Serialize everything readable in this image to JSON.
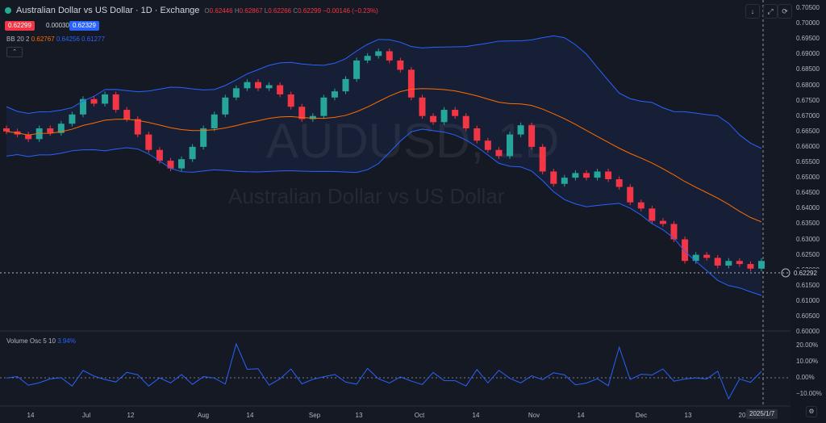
{
  "header": {
    "title": "Australian Dollar vs US Dollar · 1D · Exchange",
    "o_label": "O",
    "o_value": "0.62446",
    "h_label": "H",
    "h_value": "0.62867",
    "l_label": "L",
    "l_value": "0.62266",
    "c_label": "C",
    "c_value": "0.62299",
    "change": "−0.00146 (−0.23%)"
  },
  "trade": {
    "sell": "0.62299",
    "spread": "0.00030",
    "buy": "0.62329"
  },
  "bb": {
    "label": "BB",
    "params": "20 2",
    "basis": "0.62767",
    "upper": "0.64256",
    "lower": "0.61277"
  },
  "volosc": {
    "label": "Volume Osc",
    "params": "5 10",
    "value": "3.94%"
  },
  "watermark": {
    "symbol": "AUDUSD, 1D",
    "name": "Australian Dollar vs US Dollar"
  },
  "price_axis": [
    "0.70500",
    "0.70000",
    "0.69500",
    "0.69000",
    "0.68500",
    "0.68000",
    "0.67500",
    "0.67000",
    "0.66500",
    "0.66000",
    "0.65500",
    "0.65000",
    "0.64500",
    "0.64000",
    "0.63500",
    "0.63000",
    "0.62500",
    "0.62000",
    "0.61500",
    "0.61000",
    "0.60500",
    "0.60000"
  ],
  "current_price": "0.62292",
  "osc_axis": [
    "20.00%",
    "10.00%",
    "0.00%",
    "−10.00%"
  ],
  "time_axis": [
    "14",
    "Jul",
    "12",
    "Aug",
    "14",
    "Sep",
    "13",
    "Oct",
    "14",
    "Nov",
    "14",
    "Dec",
    "13",
    "20"
  ],
  "date_badge": "2025/1/7",
  "colors": {
    "up": "#26a69a",
    "down": "#f23645",
    "bb_band": "#2962ff",
    "basis": "#ff6d00",
    "osc": "#2962ff"
  },
  "icons": [
    "alert-icon",
    "collapse-icon",
    "maximize-icon",
    "refresh-icon",
    "settings-icon",
    "add-alert-icon"
  ],
  "chart_data": {
    "type": "candlestick",
    "series_close": [
      0.665,
      0.664,
      0.6625,
      0.666,
      0.6645,
      0.6675,
      0.6705,
      0.6755,
      0.674,
      0.677,
      0.672,
      0.669,
      0.664,
      0.659,
      0.6555,
      0.653,
      0.656,
      0.66,
      0.666,
      0.6705,
      0.676,
      0.679,
      0.681,
      0.679,
      0.68,
      0.677,
      0.673,
      0.669,
      0.67,
      0.676,
      0.678,
      0.682,
      0.688,
      0.6895,
      0.691,
      0.688,
      0.685,
      0.676,
      0.67,
      0.668,
      0.672,
      0.67,
      0.666,
      0.662,
      0.659,
      0.657,
      0.664,
      0.667,
      0.66,
      0.652,
      0.648,
      0.65,
      0.6515,
      0.65,
      0.652,
      0.6495,
      0.647,
      0.642,
      0.64,
      0.636,
      0.635,
      0.63,
      0.623,
      0.625,
      0.624,
      0.6215,
      0.623,
      0.622,
      0.6205,
      0.623
    ]
  }
}
